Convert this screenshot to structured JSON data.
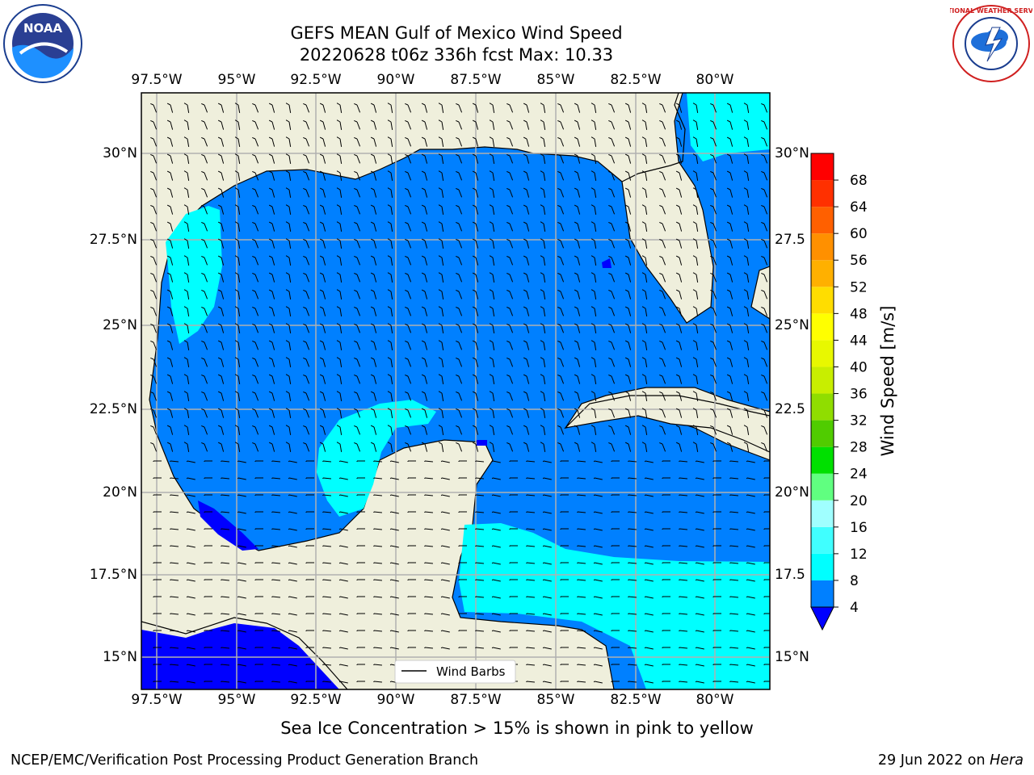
{
  "title": {
    "line1": "GEFS MEAN Gulf of Mexico Wind Speed",
    "line2": "20220628 t06z 336h fcst   Max: 10.33"
  },
  "axes": {
    "lon_ticks": [
      "97.5°W",
      "95°W",
      "92.5°W",
      "90°W",
      "87.5°W",
      "85°W",
      "82.5°W",
      "80°W"
    ],
    "lat_ticks_left": [
      "30°N",
      "27.5°N",
      "25°N",
      "22.5°N",
      "20°N",
      "17.5°N",
      "15°N"
    ],
    "lat_ticks_right": [
      "30°N",
      "27.5",
      "25°N",
      "22.5",
      "20°N",
      "17.5",
      "15°N"
    ]
  },
  "legend": {
    "label": "Wind Barbs"
  },
  "colorbar": {
    "label": "Wind Speed [m/s]",
    "ticks": [
      "4",
      "8",
      "12",
      "16",
      "20",
      "24",
      "28",
      "32",
      "36",
      "40",
      "44",
      "48",
      "52",
      "56",
      "60",
      "64",
      "68"
    ],
    "colors": [
      "#0080ff",
      "#00ffff",
      "#40ffff",
      "#a0ffff",
      "#60ff80",
      "#00e000",
      "#50cc00",
      "#90dd00",
      "#c8ee00",
      "#e8f800",
      "#ffff00",
      "#ffdd00",
      "#ffb000",
      "#ff9000",
      "#ff6000",
      "#ff3000",
      "#ff0000"
    ],
    "underflow_color": "#0000ff"
  },
  "colors": {
    "land": "#efefdc",
    "water_blue": "#0080ff",
    "water_cyan": "#00ffff",
    "water_dark": "#0000ff",
    "grid": "#b0b0b0"
  },
  "logos": {
    "noaa": "NOAA",
    "nws": "NATIONAL WEATHER SERVICE"
  },
  "notes": {
    "sea_ice": "Sea Ice Concentration > 15% is shown in pink to yellow",
    "branch": "NCEP/EMC/Verification Post Processing Product Generation Branch",
    "date": "29 Jun 2022 on",
    "host": "Hera"
  }
}
